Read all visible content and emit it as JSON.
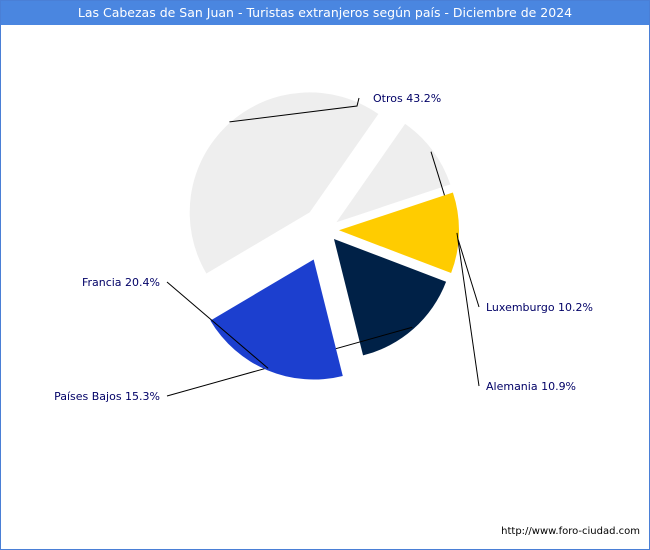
{
  "title": "Las Cabezas de San Juan - Turistas extranjeros según país - Diciembre de 2024",
  "footer_url": "http://www.foro-ciudad.com",
  "chart_data": {
    "type": "pie",
    "title": "Las Cabezas de San Juan - Turistas extranjeros según país - Diciembre de 2024",
    "slices": [
      {
        "label": "Otros",
        "value": 43.2,
        "text": "Otros 43.2%",
        "color": "#eeeeee"
      },
      {
        "label": "Luxemburgo",
        "value": 10.2,
        "text": "Luxemburgo 10.2%",
        "color": "#eeeeee"
      },
      {
        "label": "Alemania",
        "value": 10.9,
        "text": "Alemania 10.9%",
        "color": "#ffcc00"
      },
      {
        "label": "Países Bajos",
        "value": 15.3,
        "text": "Países Bajos 15.3%",
        "color": "#002147"
      },
      {
        "label": "Francia",
        "value": 20.4,
        "text": "Francia 20.4%",
        "color": "#1c3fcf"
      }
    ],
    "label_color": "#000066",
    "title_bar_color": "#4a86e0"
  }
}
